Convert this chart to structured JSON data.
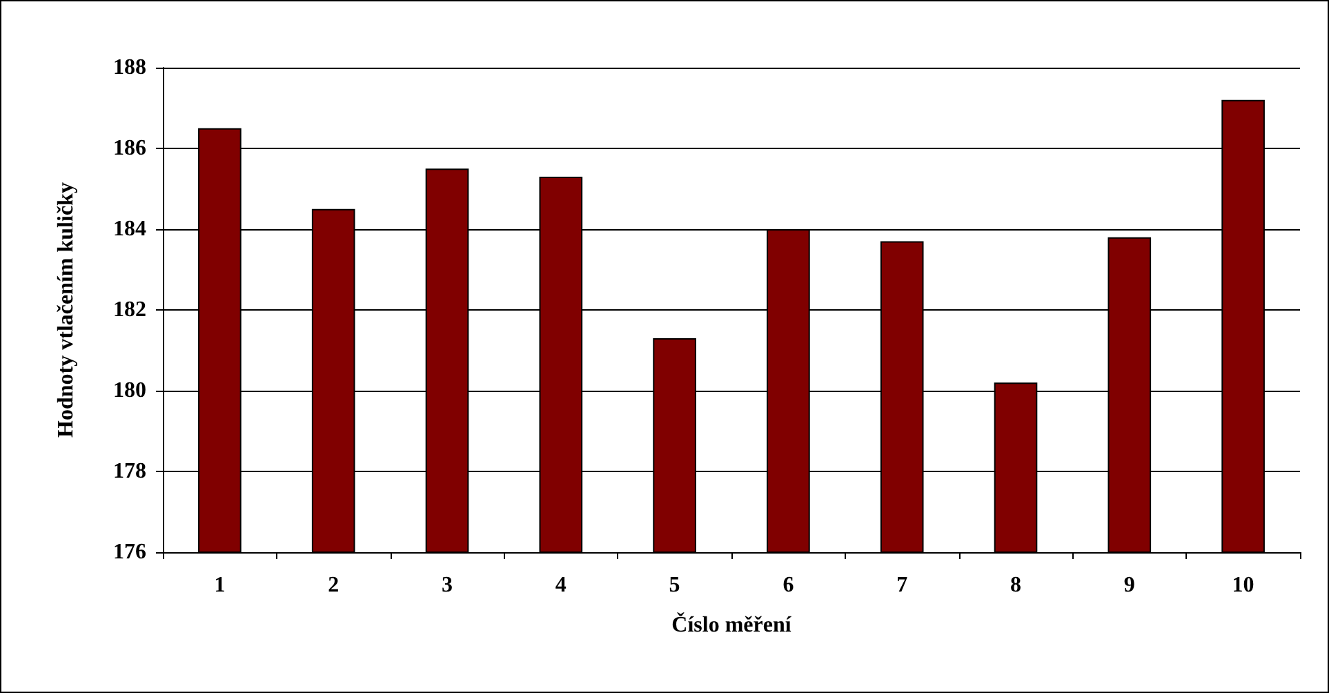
{
  "chart_data": {
    "type": "bar",
    "xlabel": "Číslo měření",
    "ylabel": "Hodnoty vtlačením kuličky",
    "categories": [
      "1",
      "2",
      "3",
      "4",
      "5",
      "6",
      "7",
      "8",
      "9",
      "10"
    ],
    "values": [
      186.5,
      184.5,
      185.5,
      185.3,
      181.3,
      184.0,
      183.7,
      180.2,
      183.8,
      187.2
    ],
    "color": "#800000",
    "ylim": [
      176,
      188
    ],
    "yticks": [
      176,
      178,
      180,
      182,
      184,
      186,
      188
    ],
    "grid": "y"
  }
}
